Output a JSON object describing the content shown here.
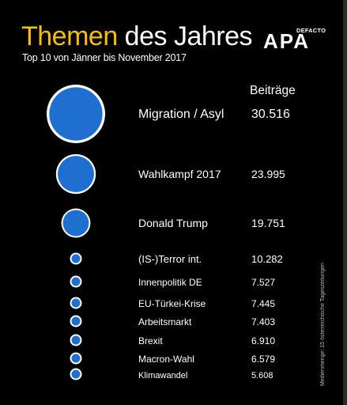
{
  "header": {
    "title_part1": "Themen",
    "title_part2": " des Jahres",
    "subtitle": "Top 10 von Jänner bis November 2017",
    "logo_text": "APA",
    "logo_sub": "DEFACTO",
    "logo_icon": "apa-logo-icon"
  },
  "footnote": "Medienmenge: 15 österreichische Tageszeitungen",
  "colors": {
    "bubble": "#1f6fd0",
    "ring": "#ffffff",
    "accent": "#f5c000",
    "background": "#000000"
  },
  "chart_data": {
    "type": "bubble",
    "title": "Themen des Jahres",
    "subtitle": "Top 10 von Jänner bis November 2017",
    "value_header": "Beiträge",
    "categories": [
      "Migration / Asyl",
      "Wahlkampf 2017",
      "Donald Trump",
      "(IS-)Terror int.",
      "Innenpolitik DE",
      "EU-Türkei-Krise",
      "Arbeitsmarkt",
      "Brexit",
      "Macron-Wahl",
      "Klimawandel"
    ],
    "values": [
      30516,
      23995,
      19751,
      10282,
      7527,
      7445,
      7403,
      6910,
      6579,
      5608
    ],
    "value_labels": [
      "30.516",
      "23.995",
      "19.751",
      "10.282",
      "7.527",
      "7.445",
      "7.403",
      "6.910",
      "6.579",
      "5.608"
    ]
  }
}
